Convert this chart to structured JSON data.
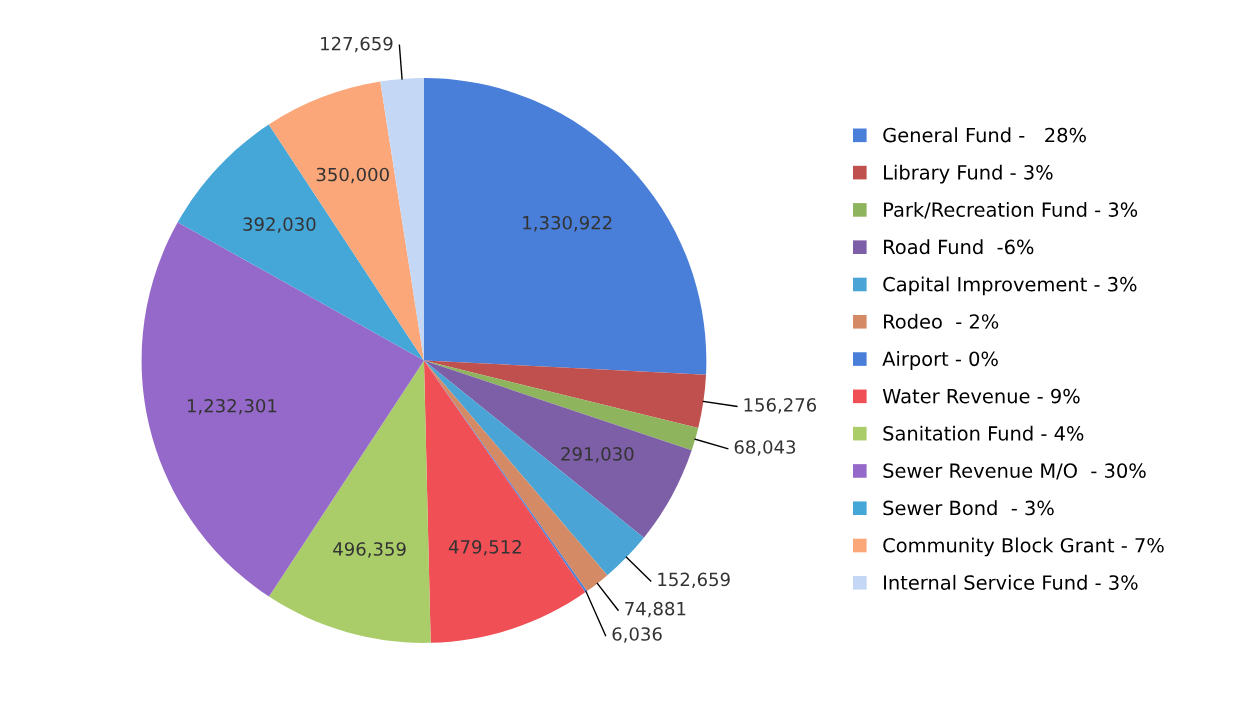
{
  "chart_data": {
    "type": "pie",
    "categories": [
      "General Fund -   28%",
      "Library Fund - 3%",
      "Park/Recreation Fund - 3%",
      "Road Fund  -6%",
      "Capital Improvement - 3%",
      "Rodeo  - 2%",
      "Airport - 0%",
      "Water Revenue - 9%",
      "Sanitation Fund - 4%",
      "Sewer Revenue M/O  - 30%",
      "Sewer Bond  - 3%",
      "Community Block Grant - 7%",
      "Internal Service Fund - 3%"
    ],
    "values": [
      1330922,
      156276,
      68043,
      291030,
      152659,
      74881,
      6036,
      479512,
      496359,
      1232301,
      392030,
      350000,
      127659
    ],
    "value_labels": [
      "1,330,922",
      "156,276",
      "68,043",
      "291,030",
      "152,659",
      "74,881",
      "6,036",
      "479,512",
      "496,359",
      "1,232,301",
      "392,030",
      "350,000",
      "127,659"
    ],
    "colors": [
      "#4a7fd9",
      "#c0504d",
      "#8fb45e",
      "#7d5fa8",
      "#4aa5d6",
      "#d48a64",
      "#4a7fd9",
      "#ef4f55",
      "#aacd6a",
      "#9569c9",
      "#45a6d8",
      "#fba77a",
      "#c4d7f5"
    ],
    "legend": "right"
  }
}
